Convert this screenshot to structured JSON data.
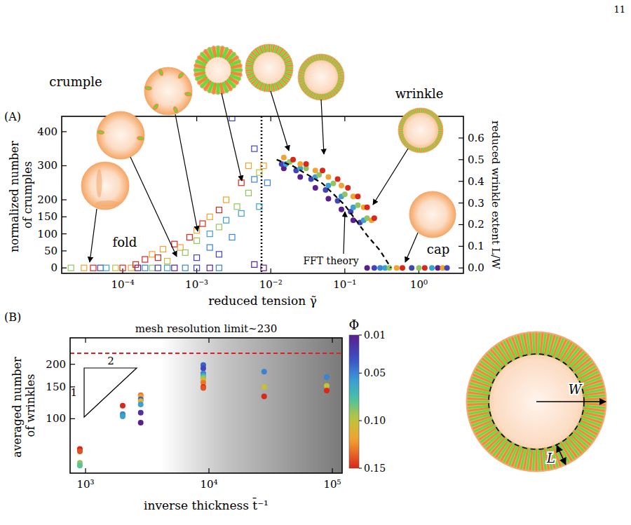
{
  "page_number": "11",
  "chart_data": [
    {
      "type": "scatter",
      "panel": "(A)",
      "x_label": "reduced tension γ̃",
      "y_label": "normalized number of crumples",
      "y2_label": "reduced wrinkle extent L/W",
      "log": "x",
      "xlim": [
        1.5e-05,
        4
      ],
      "xticks": [
        {
          "value": 0.0001,
          "label": "10⁻⁴"
        },
        {
          "value": 0.001,
          "label": "10⁻³"
        },
        {
          "value": 0.01,
          "label": "10⁻²"
        },
        {
          "value": 0.1,
          "label": "10⁻¹"
        },
        {
          "value": 1,
          "label": "10⁰"
        }
      ],
      "ylim": [
        -16,
        445
      ],
      "yticks": [
        0,
        50,
        100,
        150,
        200,
        300,
        400
      ],
      "y2lim": [
        -0.025,
        0.7
      ],
      "y2ticks": [
        {
          "value": 0,
          "label": "0.0"
        },
        0.1,
        0.2,
        0.3,
        0.4,
        0.5,
        0.6
      ],
      "reference_line": {
        "x": 0.0075
      },
      "annotations": [
        "crumple",
        "wrinkle",
        "fold",
        "cap",
        "FFT theory"
      ],
      "series": [
        {
          "type": "scatter",
          "marker": "open-square",
          "x": [
            2e-05,
            3e-05,
            4e-05,
            5e-05,
            6e-05,
            8e-05,
            0.0001,
            0.00013,
            0.00016,
            0.0002,
            0.00025,
            0.0003,
            0.0004,
            0.0005,
            0.0007,
            0.001,
            0.0015,
            0.002,
            0.006,
            0.008,
            0.00015,
            0.0002,
            0.00025,
            0.0003,
            0.00035,
            0.0004,
            0.0005,
            0.0006,
            0.0007,
            0.0008,
            0.001,
            0.001,
            0.0012,
            0.0015,
            0.0015,
            0.002,
            0.002,
            0.0025,
            0.0025,
            0.003,
            0.003,
            0.0035,
            0.004,
            0.004,
            0.005,
            0.005,
            0.006,
            0.006,
            0.007,
            0.007,
            0.008,
            0.009,
            0.001,
            0.0015,
            0.002
          ],
          "values": [
            0,
            0,
            0,
            0,
            0,
            0,
            0,
            0,
            0,
            0,
            0,
            0,
            0,
            0,
            0,
            0,
            0,
            0,
            10,
            0,
            10,
            25,
            40,
            30,
            55,
            20,
            70,
            60,
            45,
            90,
            110,
            80,
            130,
            100,
            150,
            170,
            120,
            200,
            140,
            440,
            90,
            180,
            250,
            160,
            300,
            220,
            260,
            350,
            280,
            180,
            300,
            250,
            30,
            60,
            40
          ],
          "phi": [
            0.09,
            0.12,
            0.15,
            0.03,
            0.06,
            0.1,
            0.15,
            0.12,
            0.01,
            0.05,
            0.09,
            0.03,
            0.06,
            0.01,
            0.05,
            0.03,
            0.01,
            0.05,
            0.01,
            0.01,
            0.15,
            0.15,
            0.12,
            0.15,
            0.12,
            0.1,
            0.15,
            0.12,
            0.09,
            0.15,
            0.12,
            0.09,
            0.15,
            0.06,
            0.12,
            0.15,
            0.09,
            0.12,
            0.06,
            0.03,
            0.05,
            0.09,
            0.15,
            0.06,
            0.12,
            0.09,
            0.05,
            0.03,
            0.1,
            0.06,
            0.12,
            0.05,
            0.03,
            0.05,
            0.03
          ]
        },
        {
          "type": "scatter",
          "marker": "circle",
          "axis": "y2",
          "x": [
            0.015,
            0.025,
            0.04,
            0.06,
            0.09,
            0.13,
            0.014,
            0.022,
            0.035,
            0.055,
            0.08,
            0.12,
            0.16,
            0.016,
            0.025,
            0.04,
            0.06,
            0.09,
            0.13,
            0.18,
            0.018,
            0.03,
            0.045,
            0.07,
            0.1,
            0.15,
            0.2,
            0.015,
            0.025,
            0.04,
            0.06,
            0.09,
            0.13,
            0.18,
            0.23,
            0.02,
            0.03,
            0.05,
            0.08,
            0.11,
            0.15,
            0.2,
            0.25,
            0.2,
            0.25,
            0.3,
            0.35,
            0.4,
            0.5,
            0.6,
            0.8,
            1,
            1.2,
            1.5,
            1.8,
            2.1,
            2.4
          ],
          "values": [
            0.46,
            0.42,
            0.37,
            0.32,
            0.27,
            0.22,
            0.48,
            0.45,
            0.41,
            0.36,
            0.31,
            0.26,
            0.21,
            0.48,
            0.46,
            0.42,
            0.38,
            0.33,
            0.28,
            0.22,
            0.49,
            0.46,
            0.43,
            0.39,
            0.34,
            0.29,
            0.23,
            0.51,
            0.48,
            0.45,
            0.42,
            0.38,
            0.33,
            0.28,
            0.22,
            0.5,
            0.48,
            0.45,
            0.41,
            0.37,
            0.33,
            0.28,
            0.23,
            0,
            0,
            0,
            0,
            0,
            0,
            0,
            0,
            0,
            0,
            0,
            0,
            0,
            0
          ],
          "phi": [
            0.01,
            0.01,
            0.01,
            0.01,
            0.01,
            0.01,
            0.03,
            0.03,
            0.03,
            0.03,
            0.03,
            0.03,
            0.03,
            0.06,
            0.06,
            0.06,
            0.06,
            0.06,
            0.06,
            0.06,
            0.09,
            0.09,
            0.09,
            0.09,
            0.09,
            0.09,
            0.09,
            0.12,
            0.12,
            0.12,
            0.12,
            0.12,
            0.12,
            0.12,
            0.12,
            0.15,
            0.15,
            0.15,
            0.15,
            0.15,
            0.15,
            0.15,
            0.15,
            0.01,
            0.03,
            0.05,
            0.06,
            0.09,
            0.12,
            0.15,
            0.03,
            0.09,
            0.15,
            0.06,
            0.01,
            0.12,
            0.03
          ]
        },
        {
          "type": "line",
          "line_style": "dashed",
          "color": "#000000",
          "axis": "y2",
          "x": [
            0.012,
            0.02,
            0.05,
            0.1,
            0.2,
            0.3,
            0.42
          ],
          "values": [
            0.5,
            0.47,
            0.39,
            0.29,
            0.15,
            0.08,
            0
          ]
        }
      ]
    },
    {
      "type": "scatter",
      "panel": "(B)",
      "x_label": "inverse thickness t̄⁻¹",
      "y_label": "averaged number of wrinkles",
      "log": true,
      "xlim": [
        750,
        120000
      ],
      "xticks": [
        {
          "value": 1000,
          "label": "10³"
        },
        {
          "value": 10000,
          "label": "10⁴"
        },
        {
          "value": 100000,
          "label": "10⁵"
        }
      ],
      "ylim": [
        50,
        280
      ],
      "yticks": [
        100,
        150,
        200
      ],
      "reference_line": {
        "y": 230,
        "label": "mesh resolution limit~230",
        "color": "#e02020"
      },
      "slope": {
        "run": 2,
        "rise": 1
      },
      "colorbar": {
        "title": "Φ",
        "range": [
          0.01,
          0.15
        ],
        "ticks": [
          0.01,
          0.05,
          {
            "value": 0.1,
            "label": "0.10"
          },
          0.15
        ]
      },
      "inset_labels": [
        "W",
        "L"
      ],
      "series": [
        {
          "type": "scatter",
          "marker": "circle",
          "x": [
            900,
            900,
            900,
            900,
            2000,
            2000,
            2000,
            2800,
            2800,
            2800,
            2800,
            2800,
            2800,
            2800,
            9000,
            9000,
            9000,
            9000,
            9000,
            9000,
            9000,
            9000,
            9000,
            28000,
            28000,
            28000,
            90000,
            90000,
            90000
          ],
          "values": [
            68,
            66,
            57,
            55,
            118,
            106,
            103,
            135,
            132,
            128,
            125,
            120,
            108,
            95,
            198,
            190,
            178,
            172,
            168,
            163,
            158,
            150,
            148,
            182,
            150,
            133,
            170,
            152,
            143
          ],
          "phi": [
            0.15,
            0.14,
            0.09,
            0.08,
            0.15,
            0.05,
            0.06,
            0.13,
            0.12,
            0.04,
            0.11,
            0.06,
            0.02,
            0.01,
            0.04,
            0.03,
            0.05,
            0.07,
            0.09,
            0.11,
            0.13,
            0.15,
            0.14,
            0.05,
            0.1,
            0.15,
            0.05,
            0.1,
            0.15
          ]
        }
      ]
    }
  ]
}
